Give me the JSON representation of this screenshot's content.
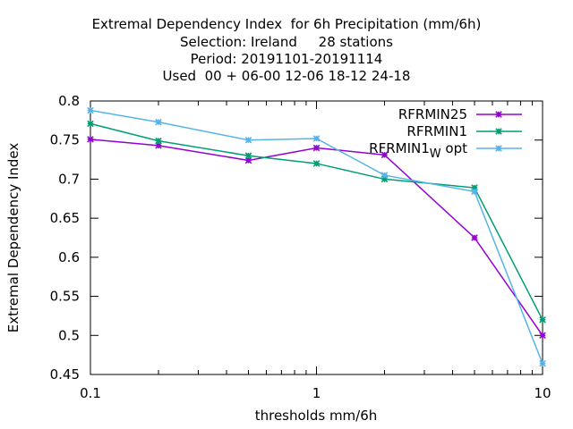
{
  "chart_data": {
    "type": "line",
    "title_lines": [
      "Extremal Dependency Index  for 6h Precipitation (mm/6h)",
      "Selection: Ireland     28 stations",
      "Period: 20191101-20191114",
      "Used  00 + 06-00 12-06 18-12 24-18"
    ],
    "xlabel": "thresholds mm/6h",
    "ylabel": "Extremal Dependency Index",
    "x_scale": "log",
    "xlim": [
      0.1,
      10
    ],
    "ylim": [
      0.45,
      0.8
    ],
    "x_ticks": [
      {
        "value": 0.1,
        "label": "0.1"
      },
      {
        "value": 1,
        "label": "1"
      },
      {
        "value": 10,
        "label": "10"
      }
    ],
    "y_ticks": [
      {
        "value": 0.45,
        "label": "0.45"
      },
      {
        "value": 0.5,
        "label": "0.5"
      },
      {
        "value": 0.55,
        "label": "0.55"
      },
      {
        "value": 0.6,
        "label": "0.6"
      },
      {
        "value": 0.65,
        "label": "0.65"
      },
      {
        "value": 0.7,
        "label": "0.7"
      },
      {
        "value": 0.75,
        "label": "0.75"
      },
      {
        "value": 0.8,
        "label": "0.8"
      }
    ],
    "grid": false,
    "legend_position": "top-right",
    "x": [
      0.1,
      0.2,
      0.5,
      1,
      2,
      5,
      10
    ],
    "series": [
      {
        "name": "RFRMIN25",
        "legend_main": "RFRMIN25",
        "legend_sub": "",
        "legend_tail": "",
        "color": "#9400d3",
        "values": [
          0.751,
          0.743,
          0.724,
          0.74,
          0.731,
          0.625,
          0.5
        ]
      },
      {
        "name": "RFRMIN1",
        "legend_main": "RFRMIN1",
        "legend_sub": "",
        "legend_tail": "",
        "color": "#009e73",
        "values": [
          0.771,
          0.749,
          0.73,
          0.72,
          0.7,
          0.689,
          0.52
        ]
      },
      {
        "name": "RFRMIN1_W opt",
        "legend_main": "RFRMIN1",
        "legend_sub": "W",
        "legend_tail": " opt",
        "color": "#56b4e9",
        "values": [
          0.788,
          0.773,
          0.75,
          0.752,
          0.705,
          0.684,
          0.464
        ]
      }
    ]
  }
}
